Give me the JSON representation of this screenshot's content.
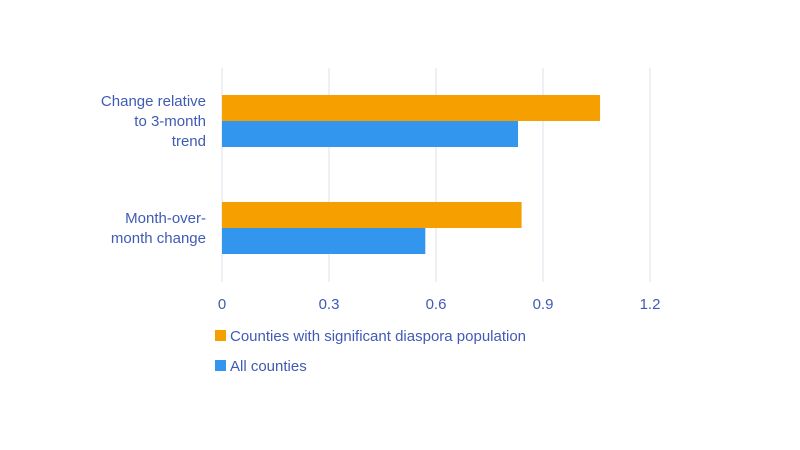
{
  "chart_data": {
    "type": "bar",
    "orientation": "horizontal",
    "categories": [
      [
        "Change relative",
        "to 3-month",
        "trend"
      ],
      [
        "Month-over-",
        "month change"
      ]
    ],
    "series": [
      {
        "name": "Counties with significant diaspora population",
        "values": [
          1.06,
          0.84
        ],
        "color": "#F5A000"
      },
      {
        "name": "All counties",
        "values": [
          0.83,
          0.57
        ],
        "color": "#3296EE"
      }
    ],
    "xlim": [
      0,
      1.2
    ],
    "xticks": [
      0,
      0.3,
      0.6,
      0.9,
      1.2
    ],
    "tick_labels": [
      "0",
      "0.3",
      "0.6",
      "0.9",
      "1.2"
    ],
    "grid": true,
    "legend_position": "bottom-left",
    "colors": {
      "label_text": "#3F5BB5",
      "gridline": "#DCE1EE"
    }
  }
}
